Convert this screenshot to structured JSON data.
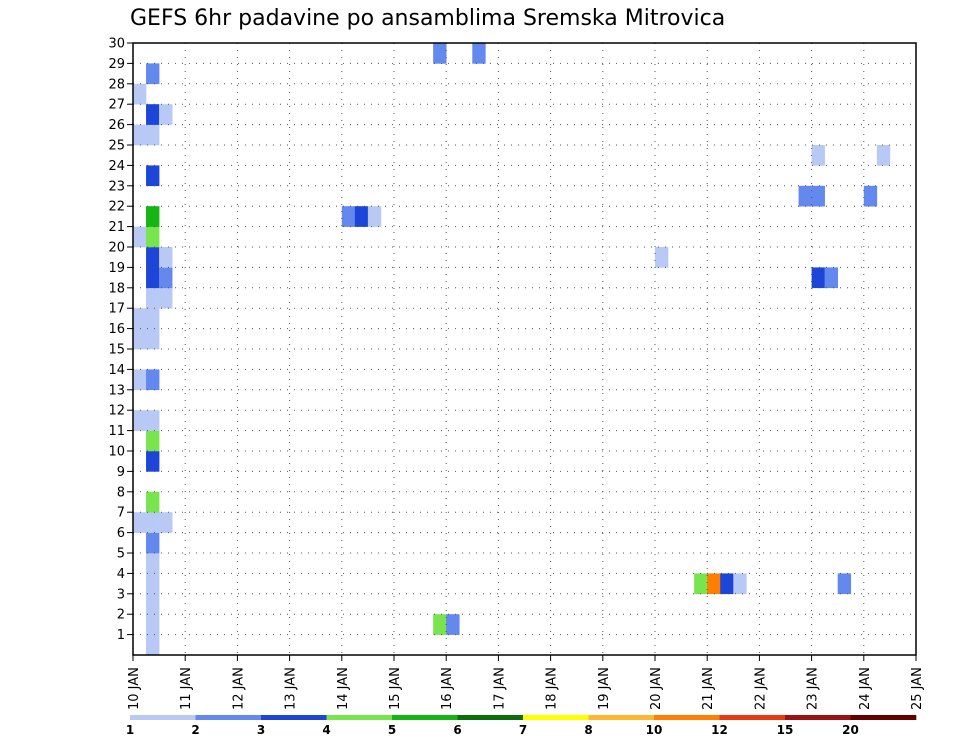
{
  "chart_data": {
    "type": "heatmap",
    "title": "GEFS 6hr padavine po ansamblima Sremska Mitrovica",
    "xlabel": "",
    "ylabel": "",
    "x_ticks": [
      "10 JAN",
      "11 JAN",
      "12 JAN",
      "13 JAN",
      "14 JAN",
      "15 JAN",
      "16 JAN",
      "17 JAN",
      "18 JAN",
      "19 JAN",
      "20 JAN",
      "21 JAN",
      "22 JAN",
      "23 JAN",
      "24 JAN",
      "25 JAN"
    ],
    "xlim": [
      0,
      15
    ],
    "ylim": [
      0,
      30
    ],
    "y_ticks": [
      "1",
      "2",
      "3",
      "4",
      "5",
      "6",
      "7",
      "8",
      "9",
      "10",
      "11",
      "12",
      "13",
      "14",
      "15",
      "16",
      "17",
      "18",
      "19",
      "20",
      "21",
      "22",
      "23",
      "24",
      "25",
      "26",
      "27",
      "28",
      "29",
      "30"
    ],
    "grid": true,
    "colorbar": {
      "labels": [
        "1",
        "2",
        "3",
        "4",
        "5",
        "6",
        "7",
        "8",
        "10",
        "12",
        "15",
        "20"
      ],
      "colors": [
        "#b9c9f5",
        "#6388ee",
        "#1d46d8",
        "#78e44e",
        "#14b514",
        "#0c6f0c",
        "#ffff00",
        "#ffb732",
        "#ff8000",
        "#e83a0f",
        "#9b1212",
        "#660000"
      ]
    },
    "cells": [
      {
        "day": 0.25,
        "member": 0,
        "value": 1.5
      },
      {
        "day": 0.25,
        "member": 1,
        "value": 1.5
      },
      {
        "day": 0.25,
        "member": 2,
        "value": 1.5
      },
      {
        "day": 0.25,
        "member": 3,
        "value": 1.5
      },
      {
        "day": 0.25,
        "member": 4,
        "value": 1.5
      },
      {
        "day": 0.25,
        "member": 5,
        "value": 2.5
      },
      {
        "day": 0.25,
        "member": 6,
        "value": 1.5
      },
      {
        "day": 0.0,
        "member": 6,
        "value": 1.5
      },
      {
        "day": 0.5,
        "member": 6,
        "value": 1.5
      },
      {
        "day": 0.25,
        "member": 7,
        "value": 4.5
      },
      {
        "day": 0.25,
        "member": 9,
        "value": 3.5
      },
      {
        "day": 0.25,
        "member": 10,
        "value": 4.5
      },
      {
        "day": 0.0,
        "member": 11,
        "value": 1.5
      },
      {
        "day": 0.25,
        "member": 11,
        "value": 1.5
      },
      {
        "day": 0.0,
        "member": 13,
        "value": 1.5
      },
      {
        "day": 0.25,
        "member": 13,
        "value": 2.5
      },
      {
        "day": 0.0,
        "member": 15,
        "value": 1.5
      },
      {
        "day": 0.25,
        "member": 15,
        "value": 1.5
      },
      {
        "day": 0.0,
        "member": 16,
        "value": 1.5
      },
      {
        "day": 0.25,
        "member": 16,
        "value": 1.5
      },
      {
        "day": 0.25,
        "member": 17,
        "value": 1.5
      },
      {
        "day": 0.5,
        "member": 17,
        "value": 1.5
      },
      {
        "day": 0.25,
        "member": 18,
        "value": 3.5
      },
      {
        "day": 0.5,
        "member": 18,
        "value": 2.5
      },
      {
        "day": 0.25,
        "member": 19,
        "value": 3.5
      },
      {
        "day": 0.5,
        "member": 19,
        "value": 1.5
      },
      {
        "day": 0.0,
        "member": 20,
        "value": 1.5
      },
      {
        "day": 0.25,
        "member": 20,
        "value": 4.5
      },
      {
        "day": 0.25,
        "member": 21,
        "value": 5.5
      },
      {
        "day": 0.25,
        "member": 23,
        "value": 3.5
      },
      {
        "day": 0.0,
        "member": 25,
        "value": 1.5
      },
      {
        "day": 0.25,
        "member": 25,
        "value": 1.5
      },
      {
        "day": 0.25,
        "member": 26,
        "value": 3.5
      },
      {
        "day": 0.5,
        "member": 26,
        "value": 1.5
      },
      {
        "day": 0.0,
        "member": 27,
        "value": 1.5
      },
      {
        "day": 0.25,
        "member": 28,
        "value": 2.5
      },
      {
        "day": 4.0,
        "member": 21,
        "value": 2.5
      },
      {
        "day": 4.25,
        "member": 21,
        "value": 3.5
      },
      {
        "day": 4.5,
        "member": 21,
        "value": 1.5
      },
      {
        "day": 5.75,
        "member": 1,
        "value": 4.5
      },
      {
        "day": 6.0,
        "member": 1,
        "value": 2.5
      },
      {
        "day": 5.75,
        "member": 29,
        "value": 2.5
      },
      {
        "day": 6.5,
        "member": 29,
        "value": 2.5
      },
      {
        "day": 10.0,
        "member": 19,
        "value": 1.5
      },
      {
        "day": 10.75,
        "member": 3,
        "value": 4.5
      },
      {
        "day": 11.0,
        "member": 3,
        "value": 11.0
      },
      {
        "day": 11.25,
        "member": 3,
        "value": 3.5
      },
      {
        "day": 11.5,
        "member": 3,
        "value": 1.5
      },
      {
        "day": 12.75,
        "member": 22,
        "value": 2.5
      },
      {
        "day": 13.0,
        "member": 22,
        "value": 2.5
      },
      {
        "day": 13.0,
        "member": 24,
        "value": 1.5
      },
      {
        "day": 13.0,
        "member": 18,
        "value": 3.5
      },
      {
        "day": 13.25,
        "member": 18,
        "value": 2.5
      },
      {
        "day": 13.5,
        "member": 3,
        "value": 2.5
      },
      {
        "day": 14.0,
        "member": 22,
        "value": 2.5
      },
      {
        "day": 14.25,
        "member": 24,
        "value": 1.5
      }
    ]
  }
}
